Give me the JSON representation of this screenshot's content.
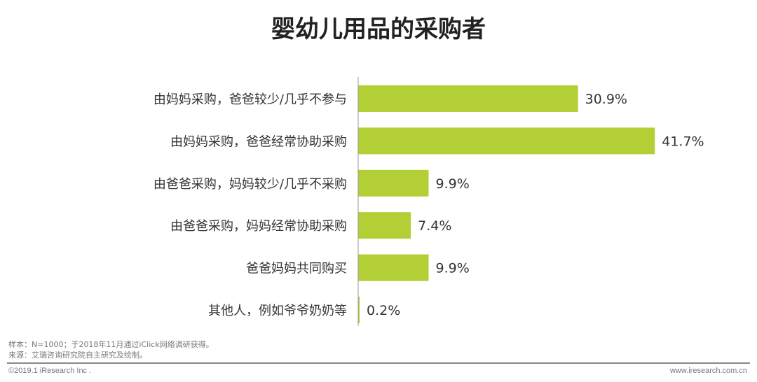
{
  "chart_data": {
    "type": "bar",
    "orientation": "horizontal",
    "title": "婴幼儿用品的采购者",
    "categories": [
      "由妈妈采购，爸爸较少/几乎不参与",
      "由妈妈采购，爸爸经常协助采购",
      "由爸爸采购，妈妈较少/几乎不采购",
      "由爸爸采购，妈妈经常协助采购",
      "爸爸妈妈共同购买",
      "其他人，例如爷爷奶奶等"
    ],
    "values": [
      30.9,
      41.7,
      9.9,
      7.4,
      9.9,
      0.2
    ],
    "data_labels": [
      "30.9%",
      "41.7%",
      "9.9%",
      "7.4%",
      "9.9%",
      "0.2%"
    ],
    "unit": "%",
    "grid": false,
    "legend": "none",
    "bar_color": "#b2cf35"
  },
  "footer": {
    "sample": "样本：N=1000；于2018年11月通过iClick网络调研获得。",
    "source": "来源：艾瑞咨询研究院自主研究及绘制。",
    "copyright": "©2019.1 iResearch Inc .",
    "website": "www.iresearch.com.cn"
  }
}
